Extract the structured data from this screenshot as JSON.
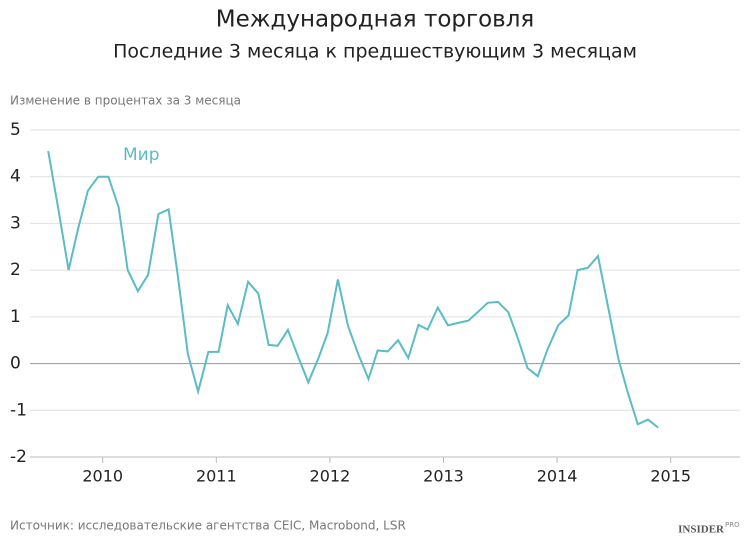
{
  "chart_data": {
    "type": "line",
    "title": "Международная торговля",
    "subtitle": "Последние 3 месяца к предшествующим 3 месяцам",
    "y_label": "Изменение в процентах за 3 месяца",
    "source": "Источник: исследовательские агентства CEIC, Macrobond, LSR",
    "logo": "INSIDER",
    "logo_sup": "PRO",
    "x": [
      2009.52,
      2009.61,
      2009.7,
      2009.78,
      2009.87,
      2009.96,
      2010.05,
      2010.14,
      2010.22,
      2010.31,
      2010.4,
      2010.49,
      2010.58,
      2010.66,
      2010.75,
      2010.84,
      2010.93,
      2011.02,
      2011.1,
      2011.19,
      2011.28,
      2011.37,
      2011.46,
      2011.54,
      2011.63,
      2011.72,
      2011.81,
      2011.9,
      2011.98,
      2012.07,
      2012.16,
      2012.25,
      2012.34,
      2012.42,
      2012.51,
      2012.6,
      2012.69,
      2012.78,
      2012.86,
      2012.95,
      2013.04,
      2013.13,
      2013.22,
      2013.3,
      2013.39,
      2013.48,
      2013.57,
      2013.66,
      2013.74,
      2013.83,
      2013.92,
      2014.01,
      2014.1,
      2014.18,
      2014.27,
      2014.36,
      2014.45,
      2014.54,
      2014.62,
      2014.71,
      2014.8,
      2014.89
    ],
    "series": [
      {
        "name": "Мир",
        "color": "#5bbcc4",
        "values": [
          4.55,
          3.3,
          2.0,
          2.85,
          3.7,
          4.0,
          4.0,
          3.35,
          2.0,
          1.55,
          1.9,
          3.2,
          3.3,
          1.9,
          0.2,
          -0.6,
          0.25,
          0.25,
          1.25,
          0.85,
          1.75,
          1.5,
          0.4,
          0.38,
          0.72,
          0.15,
          -0.4,
          0.12,
          0.65,
          1.8,
          0.8,
          0.2,
          -0.33,
          0.28,
          0.26,
          0.5,
          0.12,
          0.83,
          0.73,
          1.2,
          0.82,
          0.87,
          0.92,
          1.1,
          1.3,
          1.32,
          1.1,
          0.5,
          -0.1,
          -0.27,
          0.33,
          0.82,
          1.03,
          2.0,
          2.05,
          2.3,
          1.2,
          0.1,
          -0.6,
          -1.3,
          -1.2,
          -1.37
        ]
      }
    ],
    "xlim": [
      2009.36,
      2015.61
    ],
    "xticks": [
      2010,
      2011,
      2012,
      2013,
      2014,
      2015
    ],
    "ylim": [
      -2,
      5
    ],
    "yticks": [
      5,
      4,
      3,
      2,
      1,
      0,
      -1,
      -2
    ],
    "grid": true
  }
}
